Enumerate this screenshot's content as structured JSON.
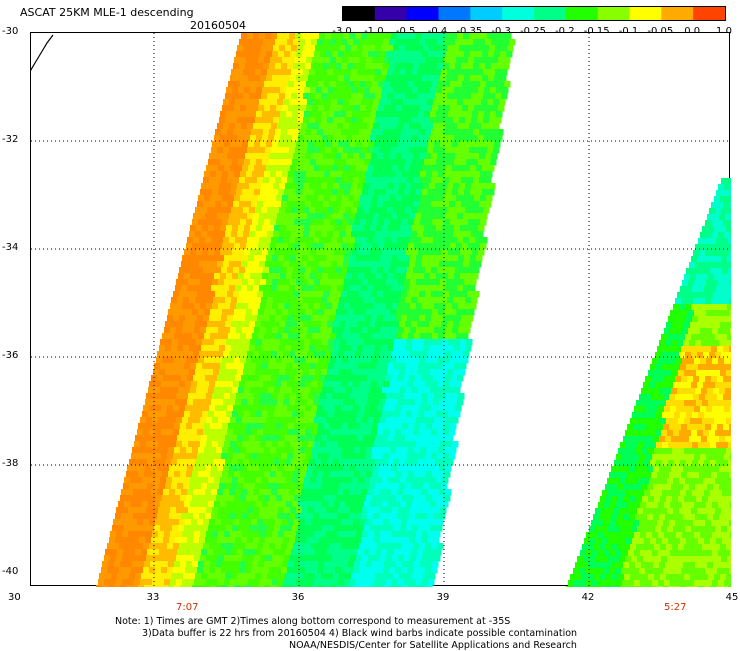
{
  "header": {
    "title": "ASCAT 25KM MLE-1 descending",
    "date": "20160504"
  },
  "colorbar": {
    "labels": [
      "-3.0",
      "-1.0",
      "-0.5",
      "-0.4",
      "-0.35",
      "-0.3",
      "-0.25",
      "-0.2",
      "-0.15",
      "-0.1",
      "-0.05",
      "0.0",
      "1.0"
    ],
    "colors": [
      "#000000",
      "#3300aa",
      "#0000ff",
      "#0077ff",
      "#00ccff",
      "#00ffdd",
      "#00ff88",
      "#22ff00",
      "#88ff00",
      "#ffff00",
      "#ffaa00",
      "#ff4400"
    ]
  },
  "axes": {
    "lat_labels": [
      "-30",
      "-32",
      "-34",
      "-36",
      "-38",
      "-40"
    ],
    "lon_labels": [
      "30",
      "33",
      "36",
      "39",
      "42",
      "45"
    ]
  },
  "time_labels": [
    "7:07",
    "5:27"
  ],
  "notes": {
    "line1": "Note: 1) Times are GMT 2)Times along bottom correspond to measurement at -35S",
    "line2": "3)Data buffer is 22 hrs from 20160504 4) Black wind barbs indicate possible contamination",
    "line3": "NOAA/NESDIS/Center for Satellite Applications and Research"
  },
  "map_data": {
    "swaths": [
      {
        "name": "west",
        "dominant_colors": [
          "#ff8800",
          "#ffff00",
          "#44ff00",
          "#00ff88",
          "#00ffff"
        ]
      },
      {
        "name": "east",
        "dominant_colors": [
          "#00ffcc",
          "#22ff00",
          "#ffff00",
          "#ffaa00"
        ]
      }
    ]
  }
}
